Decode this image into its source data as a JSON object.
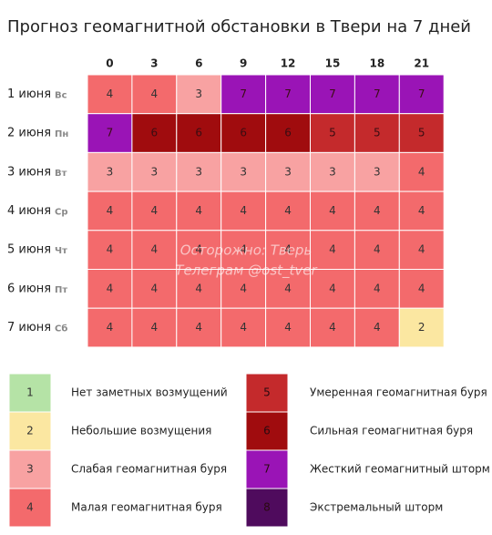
{
  "header": {
    "title": "Прогноз геомагнитной обстановки в Твери на 7 дней"
  },
  "table": {
    "columns": [
      0,
      3,
      6,
      9,
      12,
      15,
      18,
      21
    ],
    "rows": [
      {
        "date": "1 июня",
        "day": "Вс",
        "values": [
          4,
          4,
          3,
          7,
          7,
          7,
          7,
          7
        ]
      },
      {
        "date": "2 июня",
        "day": "Пн",
        "values": [
          7,
          6,
          6,
          6,
          6,
          5,
          5,
          5
        ]
      },
      {
        "date": "3 июня",
        "day": "Вт",
        "values": [
          3,
          3,
          3,
          3,
          3,
          3,
          3,
          4
        ]
      },
      {
        "date": "4 июня",
        "day": "Ср",
        "values": [
          4,
          4,
          4,
          4,
          4,
          4,
          4,
          4
        ]
      },
      {
        "date": "5 июня",
        "day": "Чт",
        "values": [
          4,
          4,
          4,
          4,
          4,
          4,
          4,
          4
        ]
      },
      {
        "date": "6 июня",
        "day": "Пт",
        "values": [
          4,
          4,
          4,
          4,
          4,
          4,
          4,
          4
        ]
      },
      {
        "date": "7 июня",
        "day": "Сб",
        "values": [
          4,
          4,
          4,
          4,
          4,
          4,
          4,
          2
        ]
      }
    ]
  },
  "legend": [
    {
      "level": 1,
      "label": "Нет заметных возмущений",
      "color": "#b5e3a6"
    },
    {
      "level": 2,
      "label": "Небольшие возмущения",
      "color": "#fbe7a1"
    },
    {
      "level": 3,
      "label": "Слабая геомагнитная буря",
      "color": "#f8a2a2"
    },
    {
      "level": 4,
      "label": "Малая геомагнитная буря",
      "color": "#f36a6c"
    },
    {
      "level": 5,
      "label": "Умеренная геомагнитная буря",
      "color": "#c42a2c"
    },
    {
      "level": 6,
      "label": "Сильная геомагнитная буря",
      "color": "#a00c0e"
    },
    {
      "level": 7,
      "label": "Жесткий геомагнитный шторм",
      "color": "#9a14b6"
    },
    {
      "level": 8,
      "label": "Экстремальный шторм",
      "color": "#4f0b5d"
    }
  ],
  "watermark": [
    "Осторожно: Тверь",
    "Телеграм @ost_tver"
  ]
}
